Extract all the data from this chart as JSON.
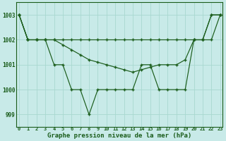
{
  "title": "Graphe pression niveau de la mer (hPa)",
  "bg_color": "#c8eae8",
  "line_color": "#1a5c1a",
  "grid_color": "#a8d8d0",
  "ylim": [
    998.5,
    1003.5
  ],
  "yticks": [
    999,
    1000,
    1001,
    1002,
    1003
  ],
  "x": [
    0,
    1,
    2,
    3,
    4,
    5,
    6,
    7,
    8,
    9,
    10,
    11,
    12,
    13,
    14,
    15,
    16,
    17,
    18,
    19,
    20,
    21,
    22,
    23
  ],
  "line1": [
    1003,
    1002,
    1002,
    1002,
    1002,
    1002,
    1002,
    1002,
    1002,
    1002,
    1002,
    1002,
    1002,
    1002,
    1002,
    1002,
    1002,
    1002,
    1002,
    1002,
    1002,
    1002,
    1003,
    1003
  ],
  "line2": [
    1003,
    1002,
    1002,
    1002,
    1002,
    1001.8,
    1001.6,
    1001.4,
    1001.2,
    1001.1,
    1001.0,
    1000.9,
    1000.8,
    1000.7,
    1000.8,
    1000.9,
    1001.0,
    1001.0,
    1001.0,
    1001.2,
    1002,
    1002,
    1002,
    1003
  ],
  "line3": [
    1003,
    1002,
    1002,
    1002,
    1001,
    1001,
    1000,
    1000,
    999,
    1000,
    1000,
    1000,
    1000,
    1000,
    1001,
    1001,
    1000,
    1000,
    1000,
    1000,
    1002,
    1002,
    1003,
    1003
  ],
  "xtick_labels": [
    "0",
    "1",
    "2",
    "3",
    "4",
    "5",
    "6",
    "7",
    "8",
    "9",
    "10",
    "11",
    "12",
    "13",
    "14",
    "15",
    "16",
    "17",
    "18",
    "19",
    "20",
    "21",
    "22",
    "23"
  ]
}
